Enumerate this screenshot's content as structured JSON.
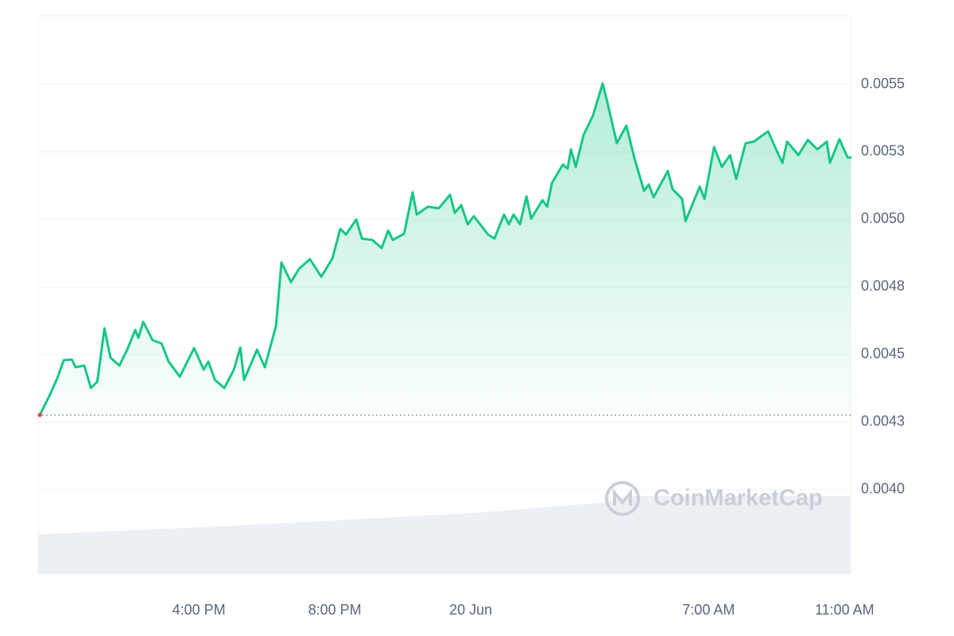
{
  "chart_data": {
    "type": "line",
    "watermark": "CoinMarketCap",
    "color": "#16c784",
    "baseline": 0.004276,
    "grid": true,
    "xlim": [
      -12.73,
      11.18
    ],
    "xticks": [
      {
        "value": -8,
        "label": "4:00 PM"
      },
      {
        "value": -4,
        "label": "8:00 PM"
      },
      {
        "value": 0,
        "label": "20 Jun"
      },
      {
        "value": 7,
        "label": "7:00 AM"
      },
      {
        "value": 11,
        "label": "11:00 AM"
      }
    ],
    "ylim": [
      0.003688,
      0.005753
    ],
    "yticks": [
      {
        "value": 0.004,
        "label": "0.0040"
      },
      {
        "value": 0.00425,
        "label": "0.0043"
      },
      0.0045,
      {
        "value": 0.00475,
        "label": "0.0048"
      },
      {
        "value": 0.005,
        "label": "0.0050"
      },
      {
        "value": 0.00525,
        "label": "0.0053"
      },
      0.0055
    ],
    "x": [
      -12.68,
      -12.4,
      -12.16,
      -11.98,
      -11.74,
      -11.63,
      -11.37,
      -11.18,
      -10.99,
      -10.78,
      -10.6,
      -10.34,
      -10.11,
      -9.87,
      -9.78,
      -9.64,
      -9.36,
      -9.1,
      -8.89,
      -8.56,
      -8.14,
      -7.86,
      -7.72,
      -7.53,
      -7.25,
      -6.97,
      -6.78,
      -6.67,
      -6.29,
      -6.06,
      -5.73,
      -5.57,
      -5.29,
      -5.05,
      -4.73,
      -4.4,
      -4.07,
      -3.84,
      -3.67,
      -3.37,
      -3.2,
      -2.9,
      -2.62,
      -2.43,
      -2.29,
      -1.96,
      -1.71,
      -1.59,
      -1.26,
      -0.94,
      -0.61,
      -0.47,
      -0.28,
      -0.09,
      0.09,
      0.51,
      0.7,
      0.98,
      1.12,
      1.26,
      1.45,
      1.64,
      1.78,
      2.11,
      2.25,
      2.39,
      2.71,
      2.85,
      2.95,
      3.09,
      3.32,
      3.6,
      3.88,
      4.0,
      4.3,
      4.58,
      4.82,
      5.1,
      5.24,
      5.38,
      5.8,
      5.94,
      6.22,
      6.32,
      6.74,
      6.88,
      7.16,
      7.39,
      7.63,
      7.81,
      8.09,
      8.33,
      8.75,
      9.03,
      9.17,
      9.31,
      9.64,
      9.92,
      10.2,
      10.48,
      10.57,
      10.85,
      11.09,
      11.18
    ],
    "values": [
      0.004276,
      0.004347,
      0.004415,
      0.004479,
      0.004482,
      0.004453,
      0.004459,
      0.004376,
      0.0044,
      0.004597,
      0.004488,
      0.004459,
      0.004518,
      0.004591,
      0.004562,
      0.004621,
      0.004553,
      0.004541,
      0.004474,
      0.004418,
      0.004524,
      0.004444,
      0.004474,
      0.004406,
      0.004376,
      0.004444,
      0.004526,
      0.004406,
      0.004518,
      0.004453,
      0.004606,
      0.004841,
      0.004768,
      0.004818,
      0.004853,
      0.004788,
      0.004856,
      0.004965,
      0.004944,
      0.005,
      0.004929,
      0.004924,
      0.004894,
      0.004959,
      0.004924,
      0.004947,
      0.0051,
      0.005018,
      0.005047,
      0.005041,
      0.005091,
      0.005024,
      0.005053,
      0.004982,
      0.005012,
      0.004944,
      0.004929,
      0.005018,
      0.004982,
      0.005018,
      0.004982,
      0.005085,
      0.005003,
      0.005071,
      0.005047,
      0.005135,
      0.005203,
      0.005188,
      0.005259,
      0.005194,
      0.005312,
      0.005385,
      0.005503,
      0.005444,
      0.005282,
      0.005347,
      0.005224,
      0.005106,
      0.005129,
      0.005082,
      0.005179,
      0.005112,
      0.005076,
      0.004994,
      0.005121,
      0.005076,
      0.005268,
      0.005194,
      0.005238,
      0.00515,
      0.005282,
      0.005288,
      0.005326,
      0.005247,
      0.005209,
      0.005288,
      0.005238,
      0.005294,
      0.005259,
      0.005288,
      0.005209,
      0.005297,
      0.005229,
      0.005229
    ]
  }
}
